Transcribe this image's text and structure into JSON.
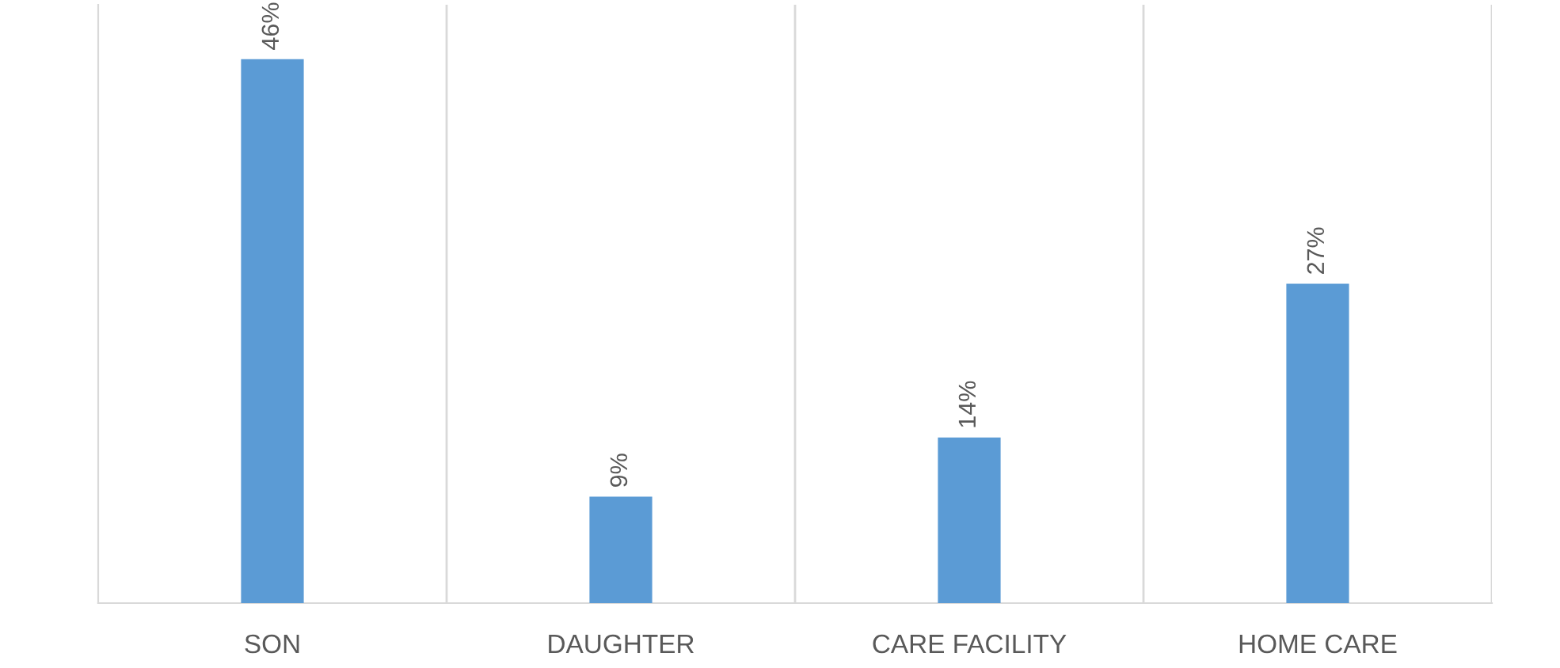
{
  "chart_data": {
    "type": "bar",
    "categories": [
      "SON",
      "DAUGHTER",
      "CARE FACILITY",
      "HOME CARE"
    ],
    "values": [
      46,
      9,
      14,
      27
    ],
    "value_labels": [
      "46%",
      "9%",
      "14%",
      "27%"
    ],
    "color": "#5b9bd5",
    "grid": "x"
  }
}
